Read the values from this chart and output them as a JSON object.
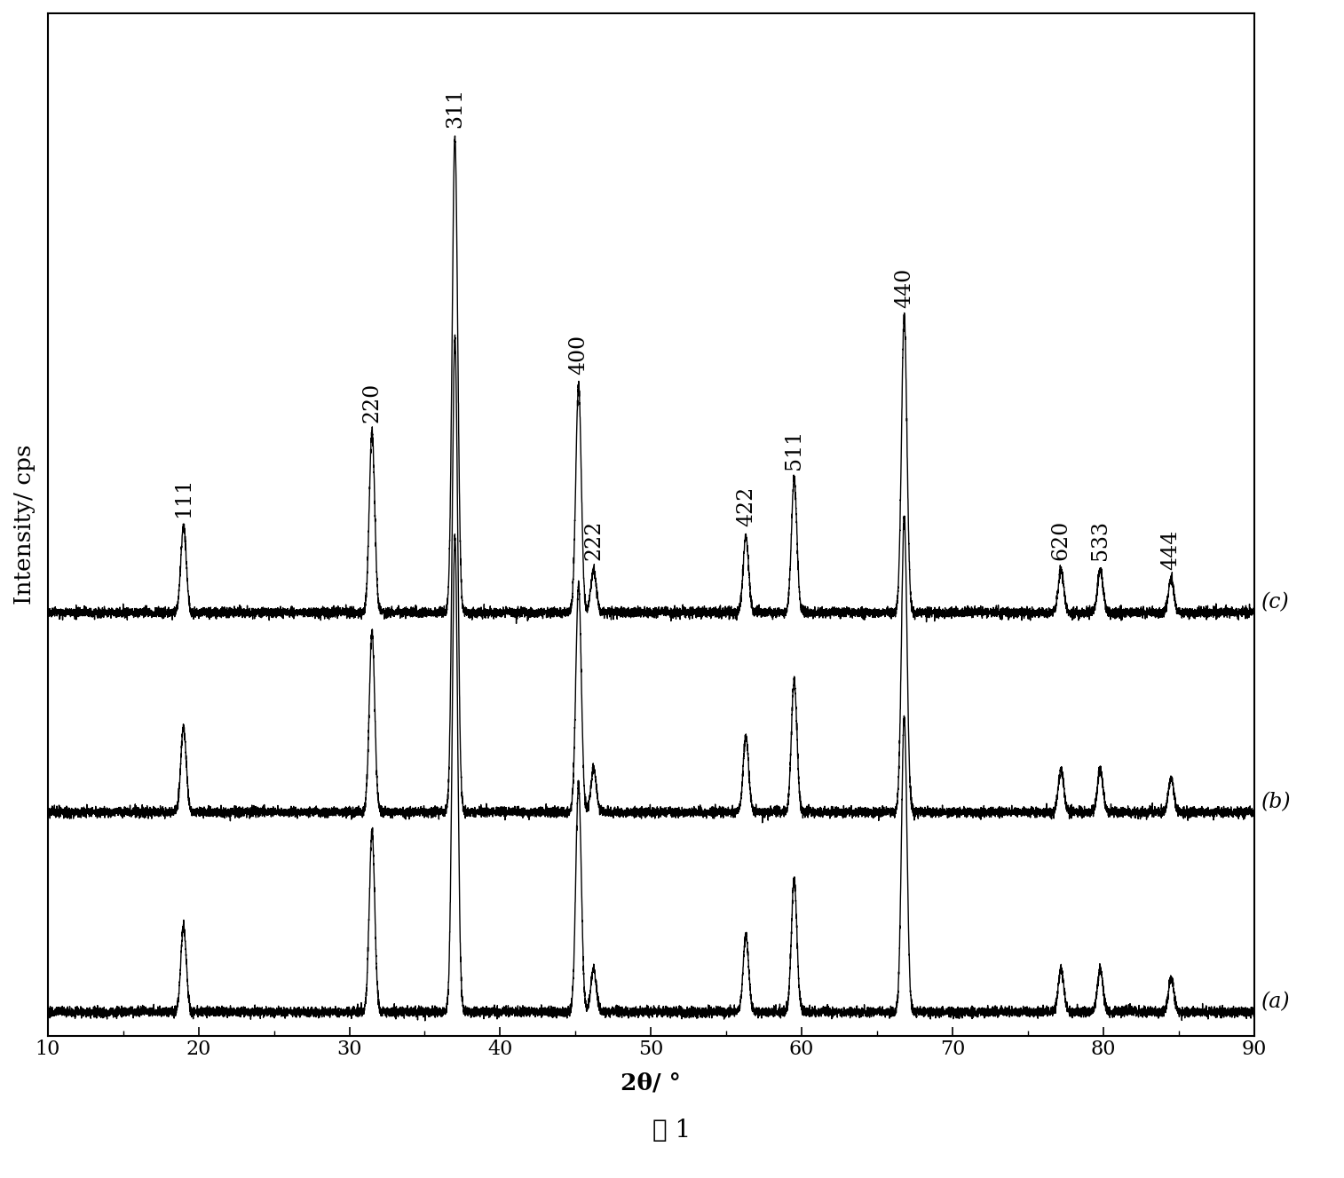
{
  "xlabel": "2θ/ °",
  "ylabel": "Intensity/ cps",
  "xlim": [
    10,
    90
  ],
  "x_ticks": [
    10,
    20,
    30,
    40,
    50,
    60,
    70,
    80,
    90
  ],
  "figure_caption": "图 1",
  "background_color": "#ffffff",
  "line_color": "#000000",
  "peak_positions": [
    19.0,
    31.5,
    37.0,
    45.2,
    46.2,
    56.3,
    59.5,
    66.8,
    77.2,
    79.8,
    84.5
  ],
  "peak_labels_all": [
    "111",
    "220",
    "311",
    "400",
    "222",
    "422",
    "511",
    "440",
    "620",
    "533",
    "444"
  ],
  "peak_heights_c": [
    0.18,
    0.38,
    1.0,
    0.48,
    0.09,
    0.16,
    0.28,
    0.62,
    0.09,
    0.09,
    0.07
  ],
  "peak_heights_b": [
    0.18,
    0.38,
    1.0,
    0.48,
    0.09,
    0.16,
    0.28,
    0.62,
    0.09,
    0.09,
    0.07
  ],
  "peak_heights_a": [
    0.18,
    0.38,
    1.0,
    0.48,
    0.09,
    0.16,
    0.28,
    0.62,
    0.09,
    0.09,
    0.07
  ],
  "offsets": [
    0.0,
    0.42,
    0.84
  ],
  "series_labels": [
    "(a)",
    "(b)",
    "(c)"
  ],
  "noise_level": 0.005,
  "peak_sigma": 0.18,
  "label_fontsize": 17,
  "tick_fontsize": 16,
  "axis_label_fontsize": 19,
  "caption_fontsize": 20,
  "series_label_fontsize": 17,
  "lw": 1.0,
  "ylim_max": 2.1
}
